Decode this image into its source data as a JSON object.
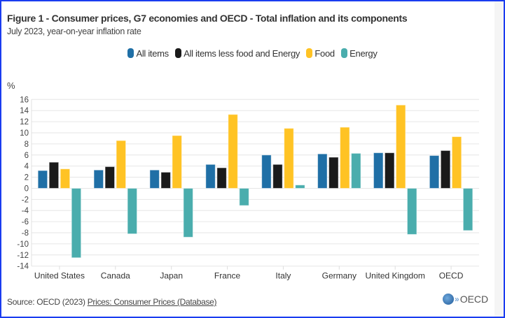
{
  "title": "Figure 1 - Consumer prices, G7 economies and OECD - Total inflation and its components",
  "subtitle": "July 2023, year-on-year inflation rate",
  "source": {
    "prefix": "Source: OECD (2023) ",
    "link": "Prices: Consumer Prices (Database)"
  },
  "logo_text": "OECD",
  "chart_data": {
    "type": "bar",
    "ylabel": "%",
    "ylim": [
      -14,
      16
    ],
    "yticks": [
      16,
      14,
      12,
      10,
      8,
      6,
      4,
      2,
      0,
      -2,
      -4,
      -6,
      -8,
      -10,
      -12,
      -14
    ],
    "grid": true,
    "legend_position": "top-center",
    "categories": [
      "United States",
      "Canada",
      "Japan",
      "France",
      "Italy",
      "Germany",
      "United Kingdom",
      "OECD"
    ],
    "series": [
      {
        "name": "All items",
        "color": "#1f6fa6",
        "values": [
          3.2,
          3.3,
          3.3,
          4.3,
          6.0,
          6.2,
          6.4,
          5.9
        ]
      },
      {
        "name": "All items less food and Energy",
        "color": "#1a1a1a",
        "values": [
          4.7,
          3.9,
          2.9,
          3.7,
          4.3,
          5.6,
          6.4,
          6.8
        ]
      },
      {
        "name": "Food",
        "color": "#ffc324",
        "values": [
          3.5,
          8.6,
          9.5,
          13.3,
          10.8,
          11.0,
          15.0,
          9.3
        ]
      },
      {
        "name": "Energy",
        "color": "#4aadad",
        "values": [
          -12.5,
          -8.2,
          -8.8,
          -3.1,
          0.6,
          6.3,
          -8.3,
          -7.6
        ]
      }
    ]
  }
}
